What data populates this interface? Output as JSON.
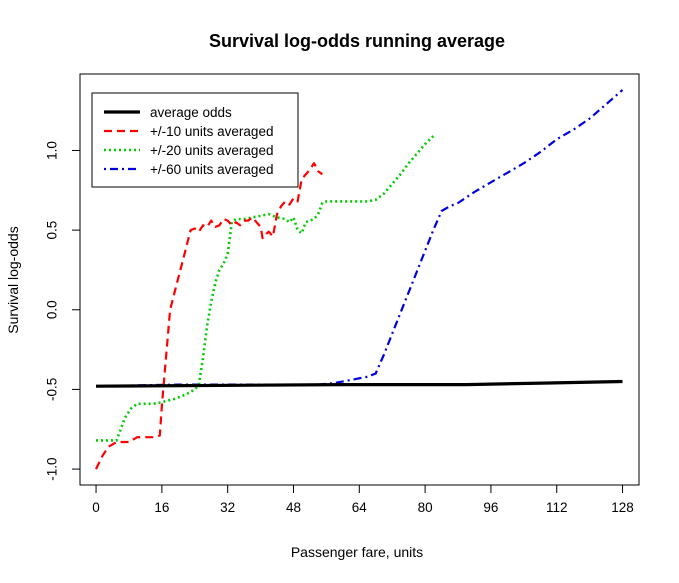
{
  "chart_data": {
    "type": "line",
    "title": "Survival log-odds running average",
    "xlabel": "Passenger fare, units",
    "ylabel": "Survival log-odds",
    "xlim": [
      -3.9,
      132
    ],
    "ylim": [
      -1.1,
      1.48
    ],
    "xticks": [
      0,
      16,
      32,
      48,
      64,
      80,
      96,
      112,
      128
    ],
    "yticks": [
      -1.0,
      -0.5,
      0.0,
      0.5,
      1.0
    ],
    "ytick_labels": [
      "-1.0",
      "-0.5",
      "0.0",
      "0.5",
      "1.0"
    ],
    "grid": false,
    "legend_position": "top-left",
    "series": [
      {
        "name": "average odds",
        "color": "#000000",
        "style": "solid",
        "points": [
          [
            0,
            -0.48
          ],
          [
            60,
            -0.47
          ],
          [
            90,
            -0.47
          ],
          [
            110,
            -0.46
          ],
          [
            128,
            -0.45
          ]
        ]
      },
      {
        "name": "+/-10 units averaged",
        "color": "#ff0000",
        "style": "dashed",
        "points": [
          [
            0,
            -1.0
          ],
          [
            1.5,
            -0.92
          ],
          [
            3,
            -0.86
          ],
          [
            5,
            -0.83
          ],
          [
            8,
            -0.83
          ],
          [
            10,
            -0.8
          ],
          [
            12,
            -0.8
          ],
          [
            14,
            -0.8
          ],
          [
            15.5,
            -0.79
          ],
          [
            16,
            -0.6
          ],
          [
            17,
            -0.3
          ],
          [
            18,
            0.0
          ],
          [
            19,
            0.1
          ],
          [
            20,
            0.2
          ],
          [
            21.5,
            0.35
          ],
          [
            23,
            0.5
          ],
          [
            24,
            0.51
          ],
          [
            25,
            0.49
          ],
          [
            26,
            0.53
          ],
          [
            27,
            0.52
          ],
          [
            28,
            0.56
          ],
          [
            29,
            0.52
          ],
          [
            30,
            0.53
          ],
          [
            31,
            0.57
          ],
          [
            32,
            0.56
          ],
          [
            33,
            0.53
          ],
          [
            34,
            0.55
          ],
          [
            35,
            0.53
          ],
          [
            36,
            0.56
          ],
          [
            37,
            0.56
          ],
          [
            38,
            0.58
          ],
          [
            39,
            0.55
          ],
          [
            40,
            0.52
          ],
          [
            40.5,
            0.45
          ],
          [
            41,
            0.47
          ],
          [
            42,
            0.49
          ],
          [
            43,
            0.46
          ],
          [
            44,
            0.6
          ],
          [
            45,
            0.65
          ],
          [
            46,
            0.68
          ],
          [
            47,
            0.66
          ],
          [
            48,
            0.7
          ],
          [
            49,
            0.68
          ],
          [
            50,
            0.82
          ],
          [
            51,
            0.85
          ],
          [
            52,
            0.88
          ],
          [
            53,
            0.92
          ],
          [
            54,
            0.87
          ],
          [
            55,
            0.85
          ]
        ]
      },
      {
        "name": "+/-20 units averaged",
        "color": "#00cc00",
        "style": "dotted",
        "points": [
          [
            0,
            -0.82
          ],
          [
            3,
            -0.82
          ],
          [
            5,
            -0.82
          ],
          [
            7,
            -0.68
          ],
          [
            8.5,
            -0.62
          ],
          [
            10,
            -0.59
          ],
          [
            14,
            -0.59
          ],
          [
            16,
            -0.58
          ],
          [
            19,
            -0.56
          ],
          [
            22,
            -0.53
          ],
          [
            24,
            -0.5
          ],
          [
            25,
            -0.47
          ],
          [
            26,
            -0.3
          ],
          [
            27,
            -0.1
          ],
          [
            28,
            0.05
          ],
          [
            29,
            0.17
          ],
          [
            30,
            0.25
          ],
          [
            31,
            0.29
          ],
          [
            32,
            0.35
          ],
          [
            33,
            0.55
          ],
          [
            34,
            0.57
          ],
          [
            36,
            0.57
          ],
          [
            38,
            0.58
          ],
          [
            40,
            0.59
          ],
          [
            42,
            0.6
          ],
          [
            44,
            0.58
          ],
          [
            46,
            0.57
          ],
          [
            47,
            0.55
          ],
          [
            48,
            0.58
          ],
          [
            49,
            0.5
          ],
          [
            50,
            0.48
          ],
          [
            51,
            0.55
          ],
          [
            53,
            0.57
          ],
          [
            54,
            0.6
          ],
          [
            55,
            0.67
          ],
          [
            56,
            0.68
          ],
          [
            58,
            0.68
          ],
          [
            62,
            0.68
          ],
          [
            66,
            0.68
          ],
          [
            68,
            0.69
          ],
          [
            70,
            0.73
          ],
          [
            72,
            0.79
          ],
          [
            74,
            0.85
          ],
          [
            76,
            0.92
          ],
          [
            78,
            0.98
          ],
          [
            80,
            1.04
          ],
          [
            82,
            1.09
          ]
        ]
      },
      {
        "name": "+/-60 units averaged",
        "color": "#0000dd",
        "style": "dotdash",
        "points": [
          [
            0,
            -0.48
          ],
          [
            20,
            -0.47
          ],
          [
            40,
            -0.47
          ],
          [
            54,
            -0.47
          ],
          [
            58,
            -0.46
          ],
          [
            62,
            -0.44
          ],
          [
            66,
            -0.42
          ],
          [
            68,
            -0.4
          ],
          [
            70,
            -0.28
          ],
          [
            72,
            -0.15
          ],
          [
            74,
            -0.02
          ],
          [
            76,
            0.11
          ],
          [
            78,
            0.24
          ],
          [
            80,
            0.37
          ],
          [
            82,
            0.5
          ],
          [
            84,
            0.62
          ],
          [
            86,
            0.65
          ],
          [
            88,
            0.67
          ],
          [
            92,
            0.74
          ],
          [
            96,
            0.8
          ],
          [
            100,
            0.86
          ],
          [
            104,
            0.92
          ],
          [
            108,
            0.99
          ],
          [
            112,
            1.07
          ],
          [
            116,
            1.13
          ],
          [
            120,
            1.2
          ],
          [
            124,
            1.29
          ],
          [
            128,
            1.38
          ]
        ]
      }
    ]
  }
}
